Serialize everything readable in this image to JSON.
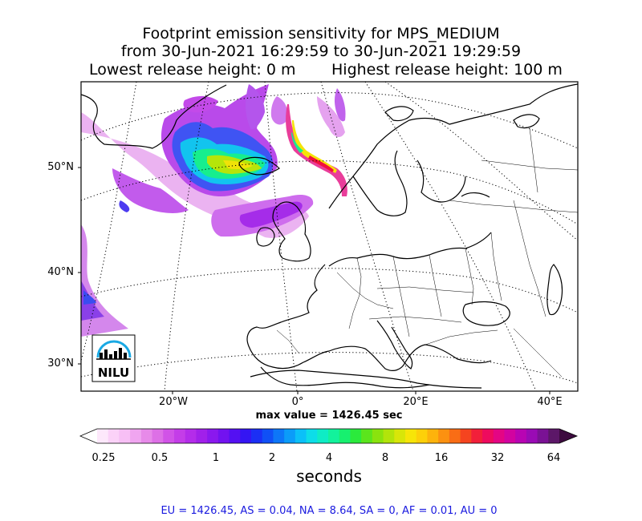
{
  "title": {
    "line1": "Footprint emission sensitivity for MPS_MEDIUM",
    "line2": "from 30-Jun-2021 16:29:59 to 30-Jun-2021 19:29:59",
    "lowest": "Lowest release height: 0 m",
    "highest": "Highest release height: 100 m"
  },
  "map": {
    "lat_labels": [
      "50°N",
      "40°N",
      "30°N"
    ],
    "lon_labels": [
      "20°W",
      "0°",
      "20°E",
      "40°E"
    ],
    "logo_text": "NILU",
    "max_value": "max value = 1426.45 sec"
  },
  "colorbar": {
    "ticks": [
      "0.25",
      "0.5",
      "1",
      "2",
      "4",
      "8",
      "16",
      "32",
      "64"
    ],
    "label": "seconds",
    "colors": [
      "#fde8fb",
      "#fbd2f8",
      "#f7bff5",
      "#f0a5f0",
      "#e78ae9",
      "#dd70e6",
      "#d153e7",
      "#c43de8",
      "#b42cea",
      "#a120ea",
      "#8a18ee",
      "#7212f0",
      "#5410f2",
      "#3415f3",
      "#1b2ff5",
      "#1050f6",
      "#0d76f8",
      "#0b9cf9",
      "#0bc0f8",
      "#0ddde8",
      "#0fecc5",
      "#12f29c",
      "#17f06f",
      "#2bea3c",
      "#5be51c",
      "#8ae30e",
      "#b2e40b",
      "#d8e609",
      "#f7e508",
      "#fdd009",
      "#fdb30c",
      "#fc9110",
      "#f96d15",
      "#f5441f",
      "#f21f3a",
      "#ee0b5e",
      "#e40584",
      "#d203a0",
      "#b804b3",
      "#9a0bb5",
      "#7a1294",
      "#5c1768"
    ]
  },
  "stats": "EU = 1426.45,  AS = 0.04,  NA = 8.64,  SA = 0,  AF = 0.01,  AU = 0"
}
